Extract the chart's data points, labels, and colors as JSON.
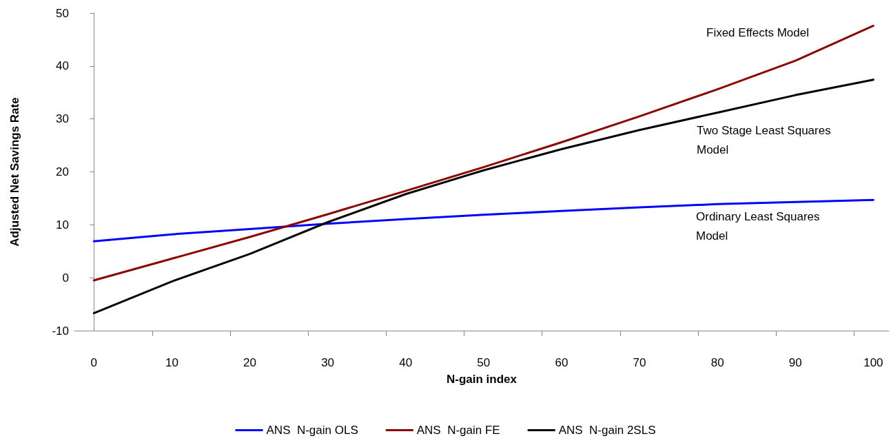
{
  "chart_data": {
    "type": "line",
    "xlabel": "N-gain index",
    "ylabel": "Adjusted Net Savings Rate",
    "x": [
      0,
      10,
      20,
      30,
      40,
      50,
      60,
      70,
      80,
      90,
      100
    ],
    "series": [
      {
        "name": "ANS  N-gain OLS",
        "color": "#0000ff",
        "values": [
          6.9,
          8.2,
          9.2,
          10.2,
          11.1,
          11.9,
          12.6,
          13.3,
          13.9,
          14.3,
          14.7
        ]
      },
      {
        "name": "ANS  N-gain FE",
        "color": "#8b0000",
        "values": [
          -0.5,
          3.6,
          7.7,
          12.0,
          16.4,
          20.9,
          25.6,
          30.5,
          35.6,
          41.0,
          47.6
        ]
      },
      {
        "name": "ANS  N-gain 2SLS",
        "color": "#000000",
        "values": [
          -6.7,
          -0.7,
          4.5,
          10.5,
          15.8,
          20.3,
          24.3,
          27.9,
          31.2,
          34.5,
          37.4
        ]
      }
    ],
    "annotations": [
      "Fixed Effects Model",
      "Two Stage Least Squares\nModel",
      "Ordinary Least Squares\nModel"
    ],
    "xlim": [
      -2.5,
      102
    ],
    "xticks": [
      0,
      10,
      20,
      30,
      40,
      50,
      60,
      70,
      80,
      90,
      100,
      {
        "value": 7.5,
        "label": null
      },
      {
        "value": 17.5,
        "label": null
      },
      {
        "value": 27.5,
        "label": null
      },
      {
        "value": 37.5,
        "label": null
      },
      {
        "value": 47.5,
        "label": null
      },
      {
        "value": 57.5,
        "label": null
      },
      {
        "value": 67.5,
        "label": null
      },
      {
        "value": 77.5,
        "label": null
      },
      {
        "value": 87.5,
        "label": null
      },
      {
        "value": 97.5,
        "label": null
      }
    ],
    "ylim": [
      -10,
      50
    ],
    "yticks": [
      -10,
      0,
      10,
      20,
      30,
      40,
      50
    ],
    "grid": false,
    "legend": "bottom",
    "marker": "none",
    "line_style": "solid"
  }
}
